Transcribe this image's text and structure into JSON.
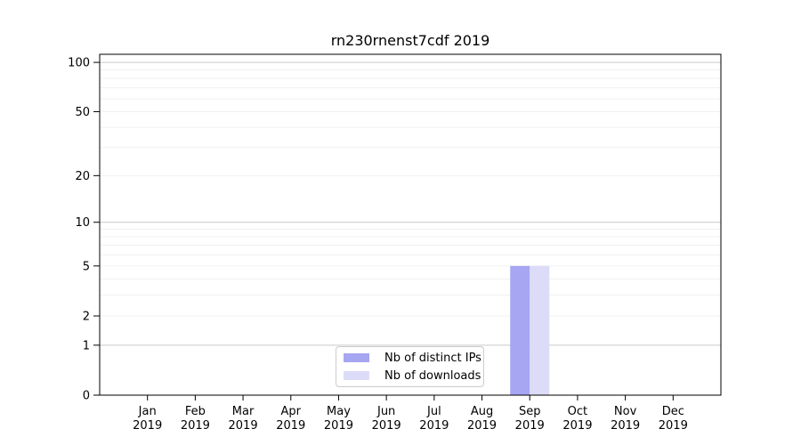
{
  "chart_data": {
    "type": "bar",
    "title": "rn230rnenst7cdf 2019",
    "categories": [
      [
        "Jan",
        "2019"
      ],
      [
        "Feb",
        "2019"
      ],
      [
        "Mar",
        "2019"
      ],
      [
        "Apr",
        "2019"
      ],
      [
        "May",
        "2019"
      ],
      [
        "Jun",
        "2019"
      ],
      [
        "Jul",
        "2019"
      ],
      [
        "Aug",
        "2019"
      ],
      [
        "Sep",
        "2019"
      ],
      [
        "Oct",
        "2019"
      ],
      [
        "Nov",
        "2019"
      ],
      [
        "Dec",
        "2019"
      ]
    ],
    "series": [
      {
        "name": "Nb of distinct IPs",
        "color": "#a6a6f2",
        "values": [
          0,
          0,
          0,
          0,
          0,
          0,
          0,
          0,
          5,
          0,
          0,
          0
        ]
      },
      {
        "name": "Nb of downloads",
        "color": "#dcdcf9",
        "values": [
          0,
          0,
          0,
          0,
          0,
          0,
          0,
          0,
          5,
          0,
          0,
          0
        ]
      }
    ],
    "xlabel": "",
    "ylabel": "",
    "y_axis": {
      "scale": "log1p",
      "ticks": [
        100,
        50,
        20,
        10,
        5,
        2,
        1,
        0
      ],
      "max": 112,
      "major_gridlines": [
        1,
        10,
        100
      ],
      "minor_gridlines": [
        2,
        3,
        4,
        5,
        6,
        7,
        8,
        9,
        20,
        30,
        40,
        50,
        60,
        70,
        80,
        90
      ],
      "major_grid_color": "#c9c9c9",
      "minor_grid_color": "#f0f0f0"
    },
    "legend": {
      "position": "lower center",
      "labels": [
        "Nb of distinct IPs",
        "Nb of downloads"
      ]
    },
    "frame_color": "#000000",
    "background_color": "#ffffff"
  }
}
